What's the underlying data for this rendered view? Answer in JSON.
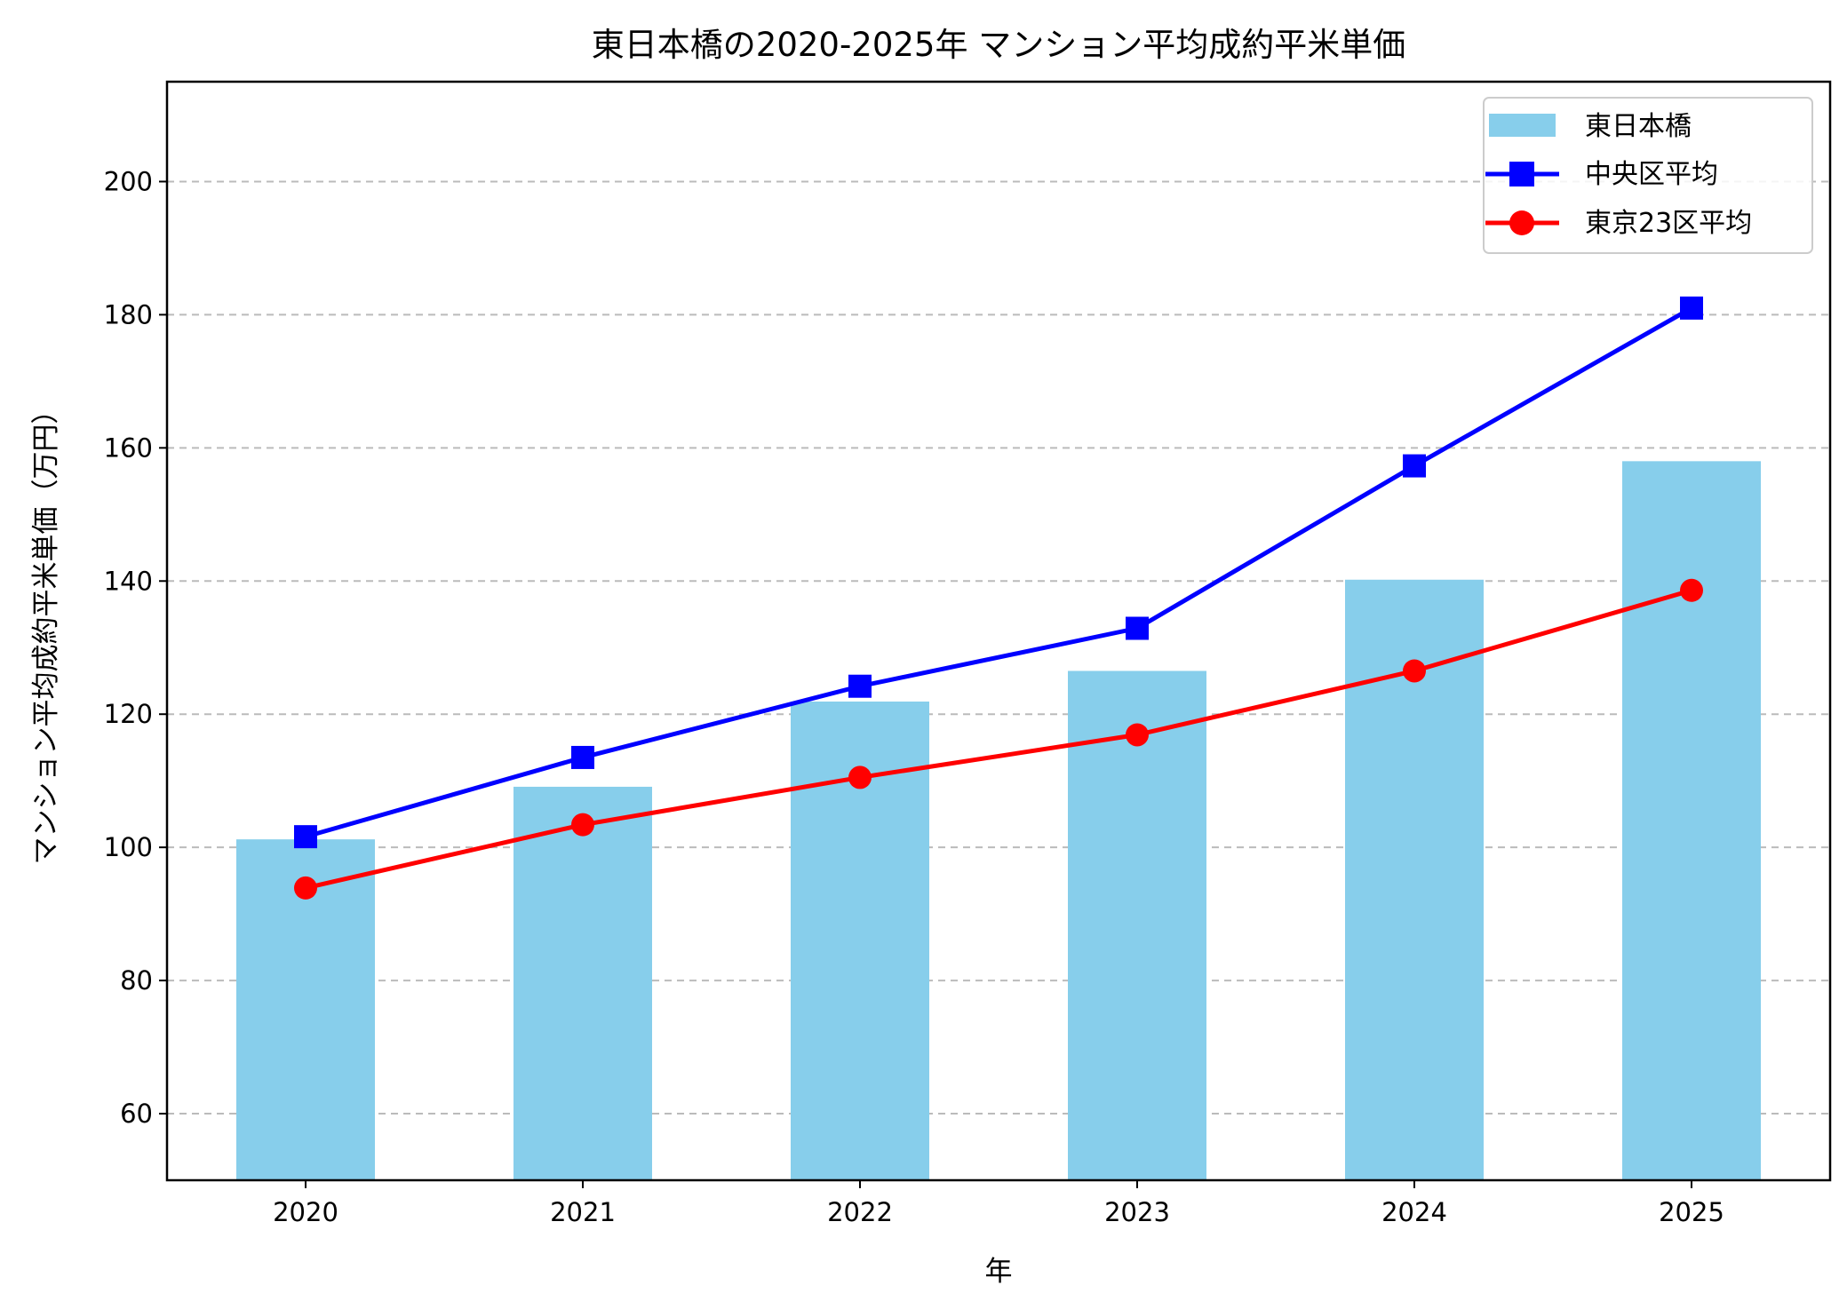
{
  "chart_data": {
    "type": "bar+line",
    "title": "東日本橋の2020-2025年 マンション平均成約平米単価",
    "xlabel": "年",
    "ylabel": "マンション平均成約平米単価（万円）",
    "categories": [
      "2020",
      "2021",
      "2022",
      "2023",
      "2024",
      "2025"
    ],
    "ylim": [
      50,
      215
    ],
    "yticks": [
      60,
      80,
      100,
      120,
      140,
      160,
      180,
      200
    ],
    "grid": "y-dashed",
    "legend_position": "top-right",
    "series": [
      {
        "name": "東日本橋",
        "kind": "bar",
        "color": "#87CEEB",
        "values": [
          101.2,
          109.1,
          121.9,
          126.5,
          140.2,
          158.0
        ]
      },
      {
        "name": "中央区平均",
        "kind": "line",
        "marker": "square",
        "color": "#0000FF",
        "values": [
          101.6,
          113.5,
          124.2,
          132.9,
          157.3,
          181.0
        ]
      },
      {
        "name": "東京23区平均",
        "kind": "line",
        "marker": "circle",
        "color": "#FF0000",
        "values": [
          93.9,
          103.4,
          110.5,
          116.9,
          126.5,
          138.6
        ]
      }
    ]
  }
}
